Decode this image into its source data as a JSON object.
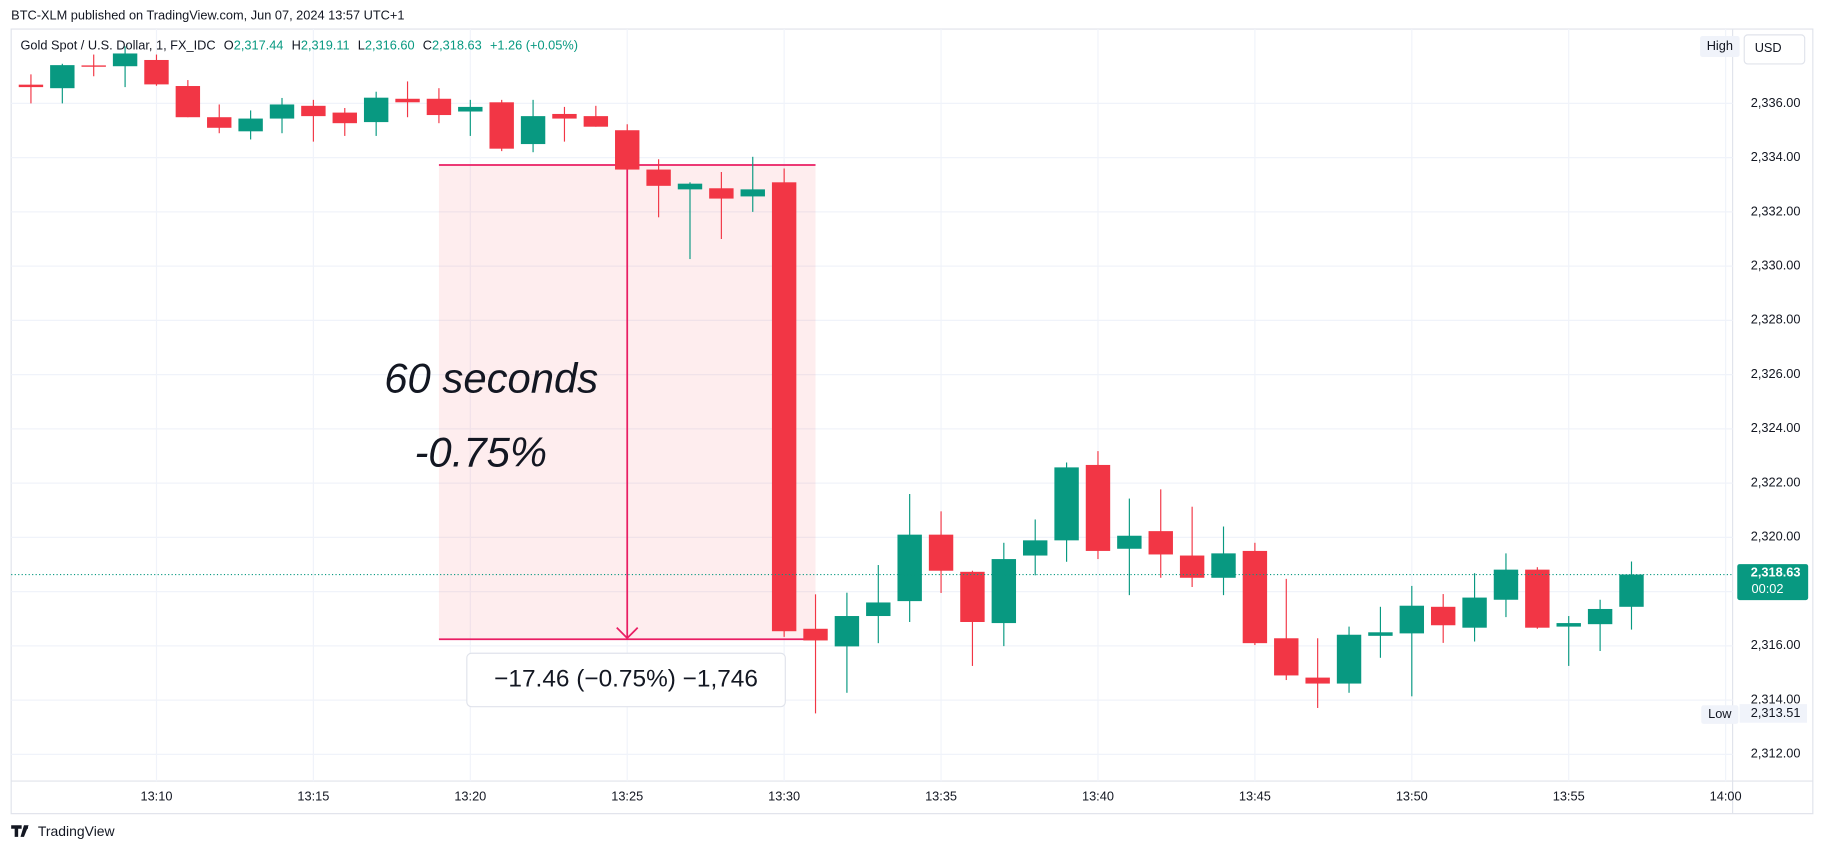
{
  "published": "BTC-XLM published on TradingView.com, Jun 07, 2024 13:57 UTC+1",
  "footer": "TradingView",
  "chart_data": {
    "type": "candlestick",
    "symbol": "Gold Spot / U.S. Dollar, 1, FX_IDC",
    "ohlc_header": {
      "open_label": "O",
      "open": "2,317.44",
      "high_label": "H",
      "high": "2,319.11",
      "low_label": "L",
      "low": "2,316.60",
      "close_label": "C",
      "close": "2,318.63",
      "change": "+1.26 (+0.05%)"
    },
    "currency": "USD",
    "high_tag": "High",
    "low_tag": "Low",
    "low_price": {
      "value": 2313.51,
      "label": "2,313.51"
    },
    "last_price": {
      "value": 2318.63,
      "label": "2,318.63"
    },
    "countdown": "00:02",
    "up_color": "#089981",
    "down_color": "#f23645",
    "grid": true,
    "categories": [
      null,
      null,
      null,
      null,
      "13:10",
      null,
      null,
      null,
      null,
      "13:15",
      null,
      null,
      null,
      null,
      "13:20",
      null,
      null,
      null,
      null,
      "13:25",
      null,
      null,
      null,
      null,
      "13:30",
      null,
      null,
      null,
      null,
      "13:35",
      null,
      null,
      null,
      null,
      "13:40",
      null,
      null,
      null,
      null,
      "13:45",
      null,
      null,
      null,
      null,
      "13:50",
      null,
      null,
      null,
      null,
      "13:55",
      null,
      null,
      null,
      null,
      "14:00"
    ],
    "open": [
      2336.69,
      2336.56,
      2337.4,
      2337.37,
      2337.6,
      2336.64,
      2335.49,
      2334.97,
      2335.44,
      2335.91,
      2335.66,
      2335.31,
      2336.17,
      2336.17,
      2335.7,
      2336.04,
      2334.5,
      2335.61,
      2335.53,
      2335.01,
      2333.56,
      2332.83,
      2332.87,
      2332.57,
      2333.09,
      2316.63,
      2315.98,
      2317.1,
      2317.65,
      2320.1,
      2318.73,
      2316.84,
      2319.33,
      2319.89,
      2322.67,
      2319.58,
      2320.23,
      2319.33,
      2318.51,
      2319.5,
      2316.28,
      2314.83,
      2314.61,
      2316.37,
      2316.46,
      2317.44,
      2316.67,
      2317.7,
      2318.81,
      2316.71,
      2316.8,
      2317.44,
      null,
      null,
      null
    ],
    "high": [
      2337.07,
      2337.46,
      2337.8,
      2338.1,
      2337.8,
      2336.86,
      2335.96,
      2335.74,
      2336.2,
      2336.13,
      2335.83,
      2336.43,
      2336.81,
      2336.56,
      2336.13,
      2336.13,
      2336.13,
      2335.87,
      2335.91,
      2335.23,
      2333.94,
      2333.09,
      2333.47,
      2334.03,
      2333.6,
      2317.9,
      2317.96,
      2318.98,
      2321.6,
      2320.96,
      2318.77,
      2319.8,
      2320.66,
      2322.76,
      2323.18,
      2321.43,
      2321.77,
      2321.13,
      2320.4,
      2319.8,
      2318.47,
      2316.28,
      2316.71,
      2317.44,
      2318.21,
      2317.91,
      2318.68,
      2319.41,
      2318.9,
      2317.1,
      2317.7,
      2319.11,
      null,
      null,
      null
    ],
    "low": [
      2336.0,
      2336.0,
      2337.0,
      2336.6,
      2336.65,
      2335.49,
      2334.9,
      2334.67,
      2334.9,
      2334.59,
      2334.8,
      2334.8,
      2335.49,
      2335.27,
      2334.8,
      2334.24,
      2334.2,
      2334.59,
      2335.14,
      2333.56,
      2331.8,
      2330.26,
      2331.0,
      2332.0,
      2316.33,
      2313.51,
      2314.27,
      2316.1,
      2316.88,
      2317.95,
      2315.26,
      2315.99,
      2318.6,
      2319.1,
      2319.2,
      2317.87,
      2318.51,
      2318.17,
      2317.87,
      2316.03,
      2314.74,
      2313.71,
      2314.27,
      2315.56,
      2314.14,
      2316.11,
      2316.16,
      2317.06,
      2316.63,
      2315.26,
      2315.81,
      2316.6,
      null,
      null,
      null
    ],
    "close": [
      2336.6,
      2337.41,
      2337.35,
      2337.84,
      2336.7,
      2335.49,
      2335.1,
      2335.44,
      2335.96,
      2335.53,
      2335.27,
      2336.21,
      2336.04,
      2335.57,
      2335.87,
      2334.33,
      2335.53,
      2335.44,
      2335.14,
      2333.56,
      2332.96,
      2333.04,
      2332.49,
      2332.83,
      2316.54,
      2316.2,
      2317.1,
      2317.6,
      2320.1,
      2318.77,
      2316.88,
      2319.2,
      2319.89,
      2322.58,
      2319.5,
      2320.06,
      2319.37,
      2318.51,
      2319.41,
      2316.1,
      2314.91,
      2314.61,
      2316.41,
      2316.5,
      2317.48,
      2316.76,
      2317.78,
      2318.81,
      2316.67,
      2316.84,
      2317.36,
      2318.63,
      null,
      null,
      null
    ],
    "ylim": [
      2311.1,
      2338.74
    ],
    "yticks": [
      {
        "value": 2312,
        "label": "2,312.00"
      },
      {
        "value": 2314,
        "label": "2,314.00"
      },
      {
        "value": 2316,
        "label": "2,316.00"
      },
      {
        "value": 2318,
        "label": "2,318.00"
      },
      {
        "value": 2320,
        "label": "2,320.00"
      },
      {
        "value": 2322,
        "label": "2,322.00"
      },
      {
        "value": 2324,
        "label": "2,324.00"
      },
      {
        "value": 2326,
        "label": "2,326.00"
      },
      {
        "value": 2328,
        "label": "2,328.00"
      },
      {
        "value": 2330,
        "label": "2,330.00"
      },
      {
        "value": 2332,
        "label": "2,332.00"
      },
      {
        "value": 2334,
        "label": "2,334.00"
      },
      {
        "value": 2336,
        "label": "2,336.00"
      }
    ],
    "annotations": {
      "duration": "60 seconds",
      "percent": "-0.75%",
      "measure": "−17.46 (−0.75%) −1,746"
    }
  }
}
